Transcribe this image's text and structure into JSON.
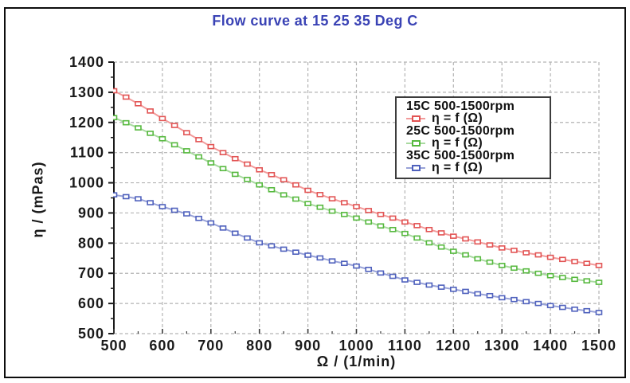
{
  "chart_data": {
    "type": "line",
    "title": "Flow curve at 15 25 35 Deg C",
    "xlabel": "Ω / (1/min)",
    "ylabel": "η / (mPas)",
    "xlim": [
      500,
      1500
    ],
    "ylim": [
      500,
      1400
    ],
    "x_ticks": [
      500,
      600,
      700,
      800,
      900,
      1000,
      1100,
      1200,
      1300,
      1400,
      1500
    ],
    "y_ticks": [
      500,
      600,
      700,
      800,
      900,
      1000,
      1100,
      1200,
      1300,
      1400
    ],
    "minor_tick_step": 50,
    "grid": "dashed",
    "legend_position": "upper-right",
    "x": [
      500,
      525,
      550,
      575,
      600,
      625,
      650,
      675,
      700,
      725,
      750,
      775,
      800,
      825,
      850,
      875,
      900,
      925,
      950,
      975,
      1000,
      1025,
      1050,
      1075,
      1100,
      1125,
      1150,
      1175,
      1200,
      1225,
      1250,
      1275,
      1300,
      1325,
      1350,
      1375,
      1400,
      1425,
      1450,
      1475,
      1500
    ],
    "series": [
      {
        "name": "15C 500-1500rpm",
        "legend_formula": "η = f (Ω)",
        "marker": "open-square",
        "marker_color": "#e25454",
        "line_color": "#f29b9b",
        "values": [
          1305,
          1284,
          1262,
          1238,
          1213,
          1190,
          1166,
          1143,
          1120,
          1100,
          1080,
          1062,
          1043,
          1027,
          1010,
          993,
          975,
          961,
          947,
          934,
          921,
          908,
          895,
          883,
          870,
          858,
          845,
          834,
          823,
          814,
          804,
          794,
          784,
          776,
          768,
          761,
          753,
          746,
          739,
          733,
          726
        ]
      },
      {
        "name": "25C 500-1500rpm",
        "legend_formula": "η = f (Ω)",
        "marker": "open-square",
        "marker_color": "#57b93f",
        "line_color": "#a9daa0",
        "values": [
          1216,
          1199,
          1182,
          1164,
          1146,
          1126,
          1106,
          1086,
          1066,
          1047,
          1028,
          1011,
          993,
          977,
          960,
          946,
          931,
          919,
          906,
          895,
          883,
          870,
          857,
          845,
          832,
          817,
          801,
          787,
          773,
          761,
          748,
          737,
          726,
          717,
          708,
          700,
          692,
          686,
          680,
          675,
          670
        ]
      },
      {
        "name": "35C 500-1500rpm",
        "legend_formula": "η = f (Ω)",
        "marker": "open-square",
        "marker_color": "#4f61bd",
        "line_color": "#98a2d8",
        "values": [
          960,
          954,
          947,
          934,
          921,
          909,
          897,
          882,
          867,
          850,
          833,
          817,
          801,
          791,
          780,
          770,
          760,
          751,
          741,
          733,
          724,
          713,
          701,
          690,
          678,
          670,
          661,
          654,
          647,
          640,
          632,
          626,
          619,
          613,
          606,
          600,
          593,
          587,
          581,
          576,
          570
        ]
      }
    ],
    "colors": {
      "title": "#3a43b5",
      "axis_text": "#1a1a1a",
      "grid": "#b3b3b3",
      "axis_line": "#1a1a1a",
      "frame_border": "#0d0d0d"
    }
  }
}
